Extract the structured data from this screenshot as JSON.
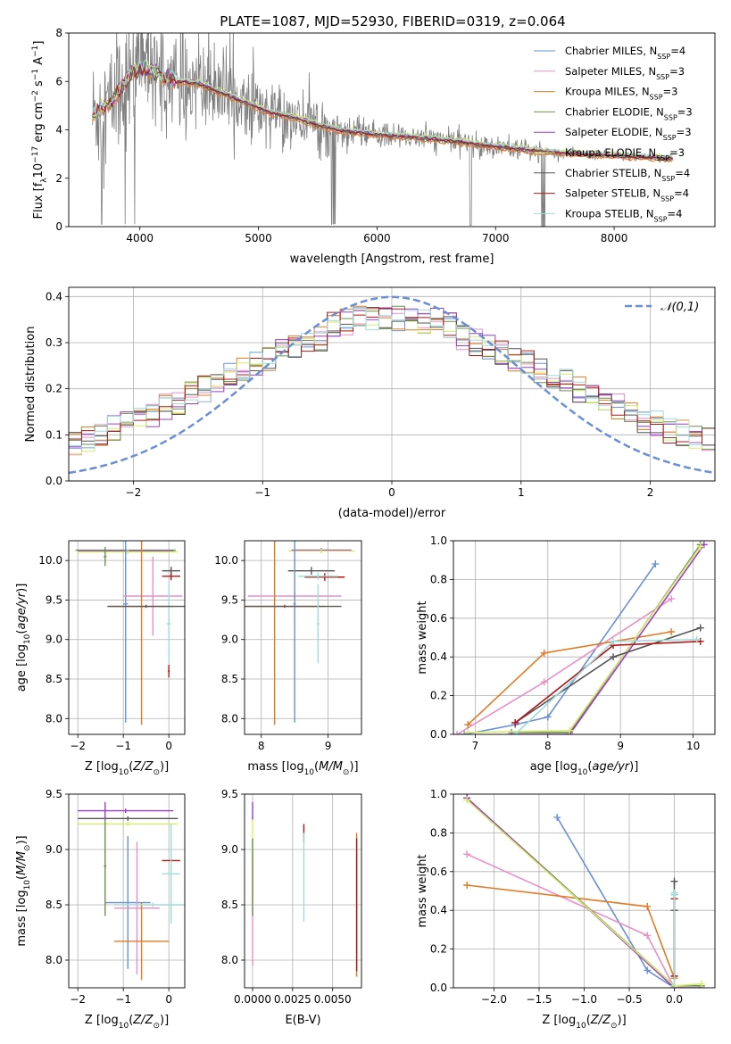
{
  "figure_title": "PLATE=1087, MJD=52930, FIBERID=0319, z=0.064",
  "colors": {
    "Chabrier MILES": "#6a8fd6",
    "Salpeter MILES": "#e98fc6",
    "Kroupa MILES": "#e07b25",
    "Chabrier ELODIE": "#6b8f52",
    "Salpeter ELODIE": "#9a3fc8",
    "Kroupa ELODIE": "#d6ec6a",
    "Chabrier STELIB": "#555555",
    "Salpeter STELIB": "#b01818",
    "Kroupa STELIB": "#9fdcd8",
    "data": "#7f7f7f",
    "normal": "#6a8fd6"
  },
  "chart_data": [
    {
      "id": "spectrum",
      "type": "line",
      "title": "PLATE=1087, MJD=52930, FIBERID=0319, z=0.064",
      "xlabel": "wavelength [Angstrom, rest frame]",
      "ylabel": "Flux [f_λ 10^-17 erg cm^-2 s^-1 A^-1]",
      "xlim": [
        3400,
        8850
      ],
      "ylim": [
        0,
        8
      ],
      "xticks": [
        4000,
        5000,
        6000,
        7000,
        8000
      ],
      "yticks": [
        0,
        2,
        4,
        6,
        8
      ],
      "legend_position": "top-right",
      "legend": [
        {
          "base": "Chabrier MILES, N",
          "sub": "SSP",
          "tail": "=4"
        },
        {
          "base": "Salpeter MILES, N",
          "sub": "SSP",
          "tail": "=3"
        },
        {
          "base": "Kroupa MILES, N",
          "sub": "SSP",
          "tail": "=3"
        },
        {
          "base": "Chabrier ELODIE, N",
          "sub": "SSP",
          "tail": "=3"
        },
        {
          "base": "Salpeter ELODIE, N",
          "sub": "SSP",
          "tail": "=3"
        },
        {
          "base": "Kroupa ELODIE, N",
          "sub": "SSP",
          "tail": "=3"
        },
        {
          "base": "Chabrier STELIB, N",
          "sub": "SSP",
          "tail": "=4"
        },
        {
          "base": "Salpeter STELIB, N",
          "sub": "SSP",
          "tail": "=4"
        },
        {
          "base": "Kroupa STELIB, N",
          "sub": "SSP",
          "tail": "=4"
        }
      ],
      "continuum": {
        "x": [
          3600,
          3750,
          3850,
          3950,
          4050,
          4150,
          4300,
          4500,
          4700,
          4900,
          5100,
          5300,
          5500,
          5700,
          5900,
          6100,
          6300,
          6500,
          6700,
          6900,
          7100,
          7300,
          7500,
          7700,
          7900,
          8100,
          8300,
          8500
        ],
        "y": [
          4.6,
          5.1,
          5.8,
          6.4,
          6.5,
          6.3,
          6.0,
          5.9,
          5.5,
          5.1,
          4.7,
          4.5,
          4.2,
          3.95,
          3.85,
          3.75,
          3.7,
          3.6,
          3.5,
          3.35,
          3.25,
          3.15,
          3.05,
          3.0,
          2.95,
          2.9,
          2.85,
          2.8
        ]
      }
    },
    {
      "id": "residuals",
      "type": "histogram",
      "xlabel": "(data-model)/error",
      "ylabel": "Normed distribution",
      "xlim": [
        -2.5,
        2.5
      ],
      "ylim": [
        0,
        0.42
      ],
      "xticks": [
        -2,
        -1,
        0,
        1,
        2
      ],
      "yticks": [
        0.0,
        0.1,
        0.2,
        0.3,
        0.4
      ],
      "legend_position": "top-right",
      "legend_label": "𝒩(0,1)",
      "normal_curve": {
        "mean": 0,
        "sigma": 1
      }
    },
    {
      "id": "age_vs_Z",
      "type": "errorbar",
      "xlabel": "Z [log10(Z/Z⊙)]",
      "ylabel": "age [log10(age/yr)]",
      "xlim": [
        -2.2,
        0.35
      ],
      "ylim": [
        7.8,
        10.25
      ],
      "xticks": [
        -2,
        -1,
        0
      ],
      "yticks": [
        8.0,
        8.5,
        9.0,
        9.5,
        10.0
      ],
      "points": [
        {
          "s": "Chabrier ELODIE",
          "x": -0.95,
          "y": 10.13,
          "xe": 1.1,
          "ye": 0.03
        },
        {
          "s": "Salpeter ELODIE",
          "x": -0.95,
          "y": 10.12,
          "xe": 1.05,
          "ye": 0.03
        },
        {
          "s": "Kroupa ELODIE",
          "x": -0.9,
          "y": 10.11,
          "xe": 1.1,
          "ye": 0.03
        },
        {
          "s": "Chabrier MILES",
          "x": -0.95,
          "y": 9.45,
          "xe": 0.05,
          "ye": 1.5
        },
        {
          "s": "Salpeter MILES",
          "x": -0.35,
          "y": 9.55,
          "xe": 0.65,
          "ye": 0.5
        },
        {
          "s": "Kroupa MILES",
          "x": -0.6,
          "y": 9.42,
          "xe": 0.7,
          "ye": 1.5
        },
        {
          "s": "Chabrier STELIB",
          "x": 0.05,
          "y": 9.87,
          "xe": 0.2,
          "ye": 0.05
        },
        {
          "s": "Salpeter STELIB",
          "x": 0.05,
          "y": 9.8,
          "xe": 0.2,
          "ye": 0.05
        },
        {
          "s": "Kroupa STELIB",
          "x": 0.0,
          "y": 9.2,
          "xe": 0.05,
          "ye": 0.5
        },
        {
          "s": "Salpeter STELIB",
          "x": 0.0,
          "y": 8.6,
          "xe": 0.02,
          "ye": 0.08
        },
        {
          "s": "Chabrier ELODIE",
          "x": -1.4,
          "y": 10.05,
          "xe": 0.03,
          "ye": 0.12
        },
        {
          "s": "Chabrier STELIB",
          "x": -0.5,
          "y": 9.42,
          "xe": 0.85,
          "ye": 0.02
        }
      ]
    },
    {
      "id": "age_vs_mass",
      "type": "errorbar",
      "xlabel": "mass [log10(M/M⊙)]",
      "ylabel": "",
      "xlim": [
        7.75,
        9.5
      ],
      "ylim": [
        7.8,
        10.25
      ],
      "xticks": [
        8,
        9
      ],
      "yticks": [
        8.0,
        8.5,
        9.0,
        9.5,
        10.0
      ],
      "points": [
        {
          "s": "Salpeter ELODIE",
          "x": 8.9,
          "y": 10.13,
          "xe": 0.45,
          "ye": 0.03
        },
        {
          "s": "Kroupa ELODIE",
          "x": 8.9,
          "y": 10.12,
          "xe": 0.5,
          "ye": 0.03
        },
        {
          "s": "Chabrier STELIB",
          "x": 8.75,
          "y": 9.87,
          "xe": 0.35,
          "ye": 0.05
        },
        {
          "s": "Salpeter STELIB",
          "x": 8.95,
          "y": 9.79,
          "xe": 0.3,
          "ye": 0.05
        },
        {
          "s": "Kroupa STELIB",
          "x": 8.85,
          "y": 9.8,
          "xe": 0.3,
          "ye": 0.05
        },
        {
          "s": "Salpeter MILES",
          "x": 8.5,
          "y": 9.55,
          "xe": 0.7,
          "ye": 0.05
        },
        {
          "s": "Kroupa MILES",
          "x": 8.2,
          "y": 9.42,
          "xe": 0.75,
          "ye": 1.5
        },
        {
          "s": "Chabrier MILES",
          "x": 8.5,
          "y": 9.45,
          "xe": 0.02,
          "ye": 1.5
        },
        {
          "s": "Chabrier STELIB",
          "x": 8.35,
          "y": 9.42,
          "xe": 0.85,
          "ye": 0.02
        },
        {
          "s": "Kroupa STELIB",
          "x": 8.85,
          "y": 9.2,
          "xe": 0.02,
          "ye": 0.5
        }
      ]
    },
    {
      "id": "weight_vs_age",
      "type": "line",
      "xlabel": "age [log10(age/yr)]",
      "ylabel": "mass weight",
      "xlim": [
        6.7,
        10.3
      ],
      "ylim": [
        0,
        1
      ],
      "xticks": [
        7,
        8,
        9,
        10
      ],
      "yticks": [
        0.0,
        0.2,
        0.4,
        0.6,
        0.8,
        1.0
      ],
      "series": [
        {
          "s": "Chabrier MILES",
          "x": [
            6.85,
            7.55,
            8.0,
            9.48
          ],
          "y": [
            0.0,
            0.05,
            0.09,
            0.88
          ]
        },
        {
          "s": "Salpeter MILES",
          "x": [
            6.75,
            7.95,
            9.7
          ],
          "y": [
            0.0,
            0.27,
            0.7
          ]
        },
        {
          "s": "Kroupa MILES",
          "x": [
            6.9,
            7.95,
            9.7
          ],
          "y": [
            0.05,
            0.42,
            0.53
          ]
        },
        {
          "s": "Chabrier ELODIE",
          "x": [
            7.5,
            8.3,
            10.1
          ],
          "y": [
            0.01,
            0.01,
            0.98
          ]
        },
        {
          "s": "Salpeter ELODIE",
          "x": [
            7.5,
            8.3,
            10.15
          ],
          "y": [
            0.0,
            0.0,
            0.98
          ]
        },
        {
          "s": "Kroupa ELODIE",
          "x": [
            6.9,
            8.3,
            10.1
          ],
          "y": [
            0.01,
            0.02,
            0.97
          ]
        },
        {
          "s": "Chabrier STELIB",
          "x": [
            7.55,
            8.9,
            10.1
          ],
          "y": [
            0.06,
            0.4,
            0.55
          ]
        },
        {
          "s": "Salpeter STELIB",
          "x": [
            7.55,
            8.9,
            10.1
          ],
          "y": [
            0.06,
            0.46,
            0.48
          ]
        },
        {
          "s": "Kroupa STELIB",
          "x": [
            7.55,
            8.9,
            10.05
          ],
          "y": [
            0.0,
            0.48,
            0.49
          ]
        }
      ]
    },
    {
      "id": "mass_vs_Z",
      "type": "errorbar",
      "xlabel": "Z [log10(Z/Z⊙)]",
      "ylabel": "mass [log10(M/M⊙)]",
      "xlim": [
        -2.2,
        0.35
      ],
      "ylim": [
        7.75,
        9.5
      ],
      "xticks": [
        -2,
        -1,
        0
      ],
      "yticks": [
        8.0,
        8.5,
        9.0,
        9.5
      ],
      "points": [
        {
          "s": "Salpeter ELODIE",
          "x": -0.95,
          "y": 9.35,
          "xe": 1.05,
          "ye": 0.02
        },
        {
          "s": "Chabrier STELIB",
          "x": -0.9,
          "y": 9.28,
          "xe": 1.1,
          "ye": 0.02
        },
        {
          "s": "Kroupa ELODIE",
          "x": -0.9,
          "y": 9.23,
          "xe": 1.1,
          "ye": 0.02
        },
        {
          "s": "Chabrier MILES",
          "x": -0.9,
          "y": 8.52,
          "xe": 0.5,
          "ye": 0.6
        },
        {
          "s": "Salpeter MILES",
          "x": -0.7,
          "y": 8.47,
          "xe": 0.5,
          "ye": 0.6
        },
        {
          "s": "Kroupa MILES",
          "x": -0.6,
          "y": 8.17,
          "xe": 0.6,
          "ye": 0.35
        },
        {
          "s": "Salpeter STELIB",
          "x": 0.05,
          "y": 8.9,
          "xe": 0.2,
          "ye": 0.02
        },
        {
          "s": "Kroupa STELIB",
          "x": 0.05,
          "y": 8.78,
          "xe": 0.2,
          "ye": 0.45
        },
        {
          "s": "Chabrier ELODIE",
          "x": -1.4,
          "y": 8.85,
          "xe": 0.03,
          "ye": 0.45
        },
        {
          "s": "Salpeter ELODIE",
          "x": -1.4,
          "y": 9.35,
          "xe": 0.02,
          "ye": 0.08
        },
        {
          "s": "Kroupa STELIB",
          "x": -0.35,
          "y": 8.5,
          "xe": 0.85,
          "ye": 0.02
        }
      ]
    },
    {
      "id": "mass_vs_ebv",
      "type": "errorbar",
      "xlabel": "E(B-V)",
      "ylabel": "",
      "xlim": [
        -0.0005,
        0.0068
      ],
      "ylim": [
        7.75,
        9.5
      ],
      "xticks": [
        0.0,
        0.0025,
        0.005
      ],
      "xticklabels": [
        "0.0000",
        "0.0025",
        "0.0050"
      ],
      "yticks": [
        8.0,
        8.5,
        9.0,
        9.5
      ],
      "points": [
        {
          "s": "Salpeter MILES",
          "x": 0.0,
          "y": 8.45,
          "xe": 0.0,
          "ye": 0.5
        },
        {
          "s": "Kroupa ELODIE",
          "x": 0.0,
          "y": 8.9,
          "xe": 0.0,
          "ye": 0.4
        },
        {
          "s": "Salpeter ELODIE",
          "x": 0.0,
          "y": 9.35,
          "xe": 0.0,
          "ye": 0.08
        },
        {
          "s": "Chabrier ELODIE",
          "x": 0.0,
          "y": 8.75,
          "xe": 0.0,
          "ye": 0.35
        },
        {
          "s": "Salpeter STELIB",
          "x": 0.0032,
          "y": 9.15,
          "xe": 0.0,
          "ye": 0.08
        },
        {
          "s": "Kroupa STELIB",
          "x": 0.0032,
          "y": 8.75,
          "xe": 0.0,
          "ye": 0.4
        },
        {
          "s": "Kroupa MILES",
          "x": 0.0065,
          "y": 8.5,
          "xe": 0.0,
          "ye": 0.65
        },
        {
          "s": "Salpeter STELIB",
          "x": 0.0065,
          "y": 8.5,
          "xe": 0.0,
          "ye": 0.6
        }
      ]
    },
    {
      "id": "weight_vs_Z",
      "type": "line",
      "xlabel": "Z [log10(Z/Z⊙)]",
      "ylabel": "mass weight",
      "xlim": [
        -2.45,
        0.45
      ],
      "ylim": [
        0,
        1
      ],
      "xticks": [
        -2.0,
        -1.5,
        -1.0,
        -0.5,
        0.0
      ],
      "xticklabels": [
        "−2.0",
        "−1.5",
        "−1.0",
        "−0.5",
        "0.0"
      ],
      "yticks": [
        0.0,
        0.2,
        0.4,
        0.6,
        0.8,
        1.0
      ],
      "series": [
        {
          "s": "Chabrier MILES",
          "x": [
            -1.3,
            -0.3,
            0.0
          ],
          "y": [
            0.88,
            0.09,
            0.0
          ]
        },
        {
          "s": "Salpeter MILES",
          "x": [
            -2.3,
            -0.3,
            0.0
          ],
          "y": [
            0.69,
            0.27,
            0.0
          ]
        },
        {
          "s": "Kroupa MILES",
          "x": [
            -2.3,
            -0.3,
            0.0
          ],
          "y": [
            0.53,
            0.42,
            0.05
          ]
        },
        {
          "s": "Chabrier ELODIE",
          "x": [
            -2.3,
            0.0,
            0.3
          ],
          "y": [
            0.98,
            0.01,
            0.01
          ]
        },
        {
          "s": "Salpeter ELODIE",
          "x": [
            -2.3,
            0.0,
            0.3
          ],
          "y": [
            0.98,
            0.0,
            0.0
          ]
        },
        {
          "s": "Kroupa ELODIE",
          "x": [
            -2.3,
            0.0,
            0.3
          ],
          "y": [
            0.97,
            0.01,
            0.02
          ]
        },
        {
          "s": "Chabrier STELIB",
          "x": [
            0.0,
            0.0,
            0.0
          ],
          "y": [
            0.55,
            0.4,
            0.06
          ]
        },
        {
          "s": "Salpeter STELIB",
          "x": [
            0.0,
            0.0,
            0.0
          ],
          "y": [
            0.48,
            0.46,
            0.06
          ]
        },
        {
          "s": "Kroupa STELIB",
          "x": [
            0.0,
            0.0,
            0.0
          ],
          "y": [
            0.49,
            0.48,
            0.0
          ]
        }
      ]
    }
  ]
}
